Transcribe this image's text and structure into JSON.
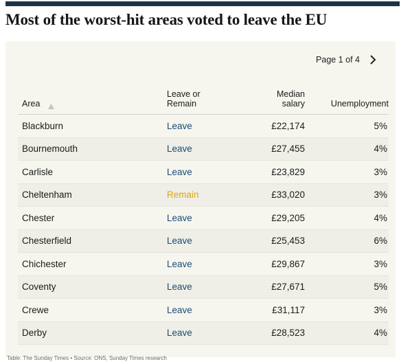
{
  "header": {
    "title": "Most of the worst-hit areas voted to leave the EU",
    "rule_color": "#1d3244"
  },
  "pager": {
    "label": "Page 1 of 4",
    "next_icon": "chevron-right-icon"
  },
  "table": {
    "columns": {
      "area": "Area",
      "vote_line1": "Leave or",
      "vote_line2": "Remain",
      "salary_line1": "Median",
      "salary_line2": "salary",
      "unemployment": "Unemployment"
    },
    "sort_icon": "sort-ascending-icon",
    "colors": {
      "leave": "#1d4a73",
      "remain": "#e0a411"
    },
    "rows": [
      {
        "area": "Blackburn",
        "vote": "Leave",
        "salary": "£22,174",
        "unemployment": "5%"
      },
      {
        "area": "Bournemouth",
        "vote": "Leave",
        "salary": "£27,455",
        "unemployment": "4%"
      },
      {
        "area": "Carlisle",
        "vote": "Leave",
        "salary": "£23,829",
        "unemployment": "3%"
      },
      {
        "area": "Cheltenham",
        "vote": "Remain",
        "salary": "£33,020",
        "unemployment": "3%"
      },
      {
        "area": "Chester",
        "vote": "Leave",
        "salary": "£29,205",
        "unemployment": "4%"
      },
      {
        "area": "Chesterfield",
        "vote": "Leave",
        "salary": "£25,453",
        "unemployment": "6%"
      },
      {
        "area": "Chichester",
        "vote": "Leave",
        "salary": "£29,867",
        "unemployment": "3%"
      },
      {
        "area": "Coventy",
        "vote": "Leave",
        "salary": "£27,671",
        "unemployment": "5%"
      },
      {
        "area": "Crewe",
        "vote": "Leave",
        "salary": "£31,117",
        "unemployment": "3%"
      },
      {
        "area": "Derby",
        "vote": "Leave",
        "salary": "£28,523",
        "unemployment": "4%"
      }
    ]
  },
  "footnote": "Table: The Sunday Times • Source: ONS, Sunday Times research"
}
